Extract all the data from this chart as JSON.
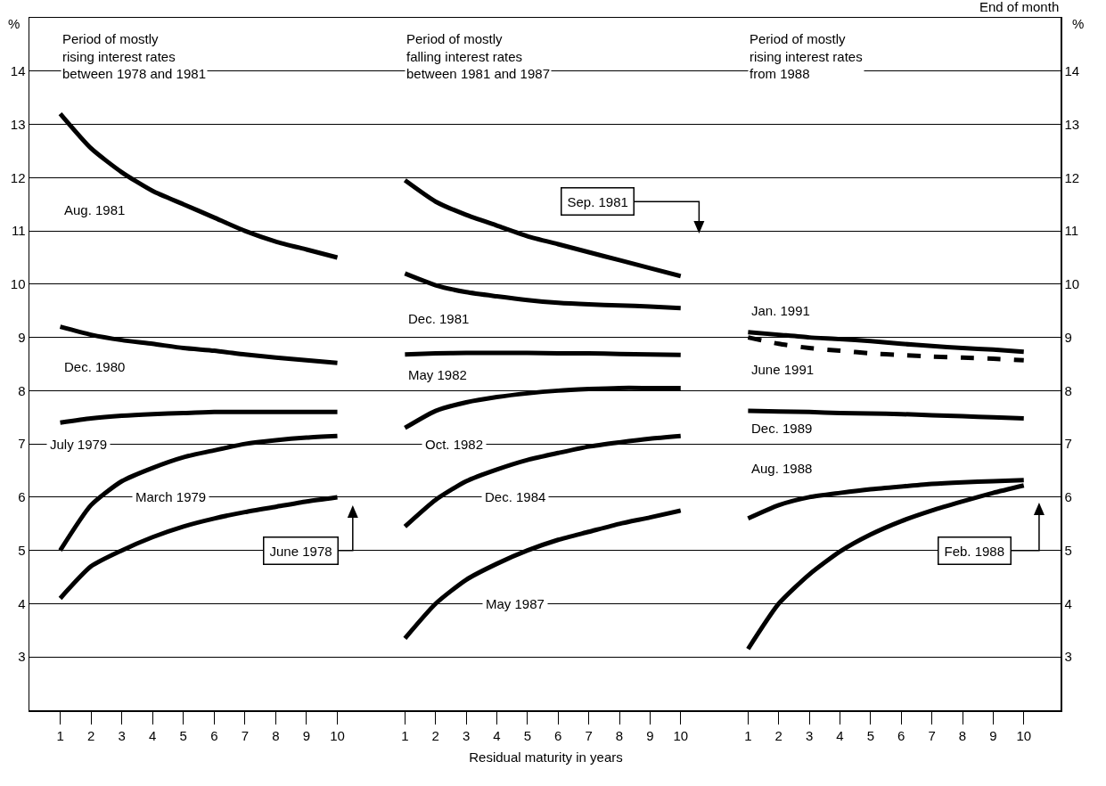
{
  "chart_data": [
    {
      "type": "line",
      "title": "Period of mostly\nrising interest rates\nbetween 1978 and 1981",
      "ylabel": "%",
      "x": [
        1,
        2,
        3,
        4,
        5,
        6,
        7,
        8,
        9,
        10
      ],
      "xlim": [
        0,
        11.2
      ],
      "xticks": [
        1,
        2,
        3,
        4,
        5,
        6,
        7,
        8,
        9,
        10
      ],
      "ylim": [
        2,
        15
      ],
      "yticks": [
        3,
        4,
        5,
        6,
        7,
        8,
        9,
        10,
        11,
        12,
        13,
        14
      ],
      "grid": "y",
      "series": [
        {
          "name": "Aug. 1981",
          "color": "#000000",
          "values": [
            13.2,
            12.55,
            12.1,
            11.75,
            11.5,
            11.25,
            11.0,
            10.8,
            10.65,
            10.5
          ]
        },
        {
          "name": "Dec. 1980",
          "color": "#000000",
          "values": [
            9.2,
            9.05,
            8.95,
            8.88,
            8.8,
            8.75,
            8.68,
            8.62,
            8.57,
            8.52
          ]
        },
        {
          "name": "July 1979",
          "color": "#000000",
          "values": [
            7.4,
            7.48,
            7.53,
            7.56,
            7.58,
            7.6,
            7.6,
            7.6,
            7.6,
            7.6
          ]
        },
        {
          "name": "March 1979",
          "color": "#000000",
          "values": [
            5.0,
            5.85,
            6.3,
            6.55,
            6.75,
            6.88,
            7.0,
            7.07,
            7.12,
            7.15
          ]
        },
        {
          "name": "June 1978",
          "color": "#000000",
          "values": [
            4.1,
            4.7,
            5.0,
            5.25,
            5.45,
            5.6,
            5.72,
            5.82,
            5.92,
            6.0
          ]
        }
      ]
    },
    {
      "type": "line",
      "title": "Period of mostly\nfalling interest rates\nbetween 1981 and 1987",
      "xlabel": "Residual maturity in years",
      "tick_labels": "x",
      "x": [
        1,
        2,
        3,
        4,
        5,
        6,
        7,
        8,
        9,
        10
      ],
      "xlim": [
        0,
        11.2
      ],
      "xticks": [
        1,
        2,
        3,
        4,
        5,
        6,
        7,
        8,
        9,
        10
      ],
      "ylim": [
        2,
        15
      ],
      "yticks": [
        3,
        4,
        5,
        6,
        7,
        8,
        9,
        10,
        11,
        12,
        13,
        14
      ],
      "grid": "y",
      "series": [
        {
          "name": "Sep. 1981",
          "color": "#000000",
          "values": [
            11.95,
            11.55,
            11.3,
            11.1,
            10.9,
            10.75,
            10.6,
            10.45,
            10.3,
            10.15
          ]
        },
        {
          "name": "Dec. 1981",
          "color": "#000000",
          "values": [
            10.2,
            9.98,
            9.85,
            9.77,
            9.7,
            9.65,
            9.62,
            9.6,
            9.58,
            9.55
          ]
        },
        {
          "name": "May 1982",
          "color": "#000000",
          "values": [
            8.68,
            8.7,
            8.71,
            8.71,
            8.71,
            8.7,
            8.7,
            8.69,
            8.68,
            8.67
          ]
        },
        {
          "name": "Oct. 1982",
          "color": "#000000",
          "values": [
            7.3,
            7.62,
            7.78,
            7.88,
            7.95,
            8.0,
            8.03,
            8.05,
            8.05,
            8.05
          ]
        },
        {
          "name": "Dec. 1984",
          "color": "#000000",
          "values": [
            5.45,
            5.95,
            6.3,
            6.52,
            6.7,
            6.83,
            6.95,
            7.03,
            7.1,
            7.15
          ]
        },
        {
          "name": "May 1987",
          "color": "#000000",
          "values": [
            3.35,
            4.0,
            4.45,
            4.75,
            5.0,
            5.2,
            5.35,
            5.5,
            5.62,
            5.75
          ]
        }
      ]
    },
    {
      "type": "line",
      "title": "Period of mostly\nrising interest rates\nfrom 1988",
      "ylabel": "%",
      "annotations": [
        "End of month"
      ],
      "x": [
        1,
        2,
        3,
        4,
        5,
        6,
        7,
        8,
        9,
        10
      ],
      "xlim": [
        0,
        11.2
      ],
      "xticks": [
        1,
        2,
        3,
        4,
        5,
        6,
        7,
        8,
        9,
        10
      ],
      "ylim": [
        2,
        15
      ],
      "yticks": [
        3,
        4,
        5,
        6,
        7,
        8,
        9,
        10,
        11,
        12,
        13,
        14
      ],
      "grid": "y",
      "series": [
        {
          "name": "Jan. 1991",
          "color": "#000000",
          "values": [
            9.1,
            9.05,
            9.0,
            8.97,
            8.93,
            8.88,
            8.84,
            8.8,
            8.77,
            8.73
          ]
        },
        {
          "name": "June 1991",
          "color": "#000000",
          "line_style": "dashed",
          "values": [
            9.0,
            8.88,
            8.8,
            8.75,
            8.7,
            8.67,
            8.64,
            8.62,
            8.6,
            8.57
          ]
        },
        {
          "name": "Dec. 1989",
          "color": "#000000",
          "values": [
            7.62,
            7.61,
            7.6,
            7.58,
            7.57,
            7.56,
            7.54,
            7.52,
            7.5,
            7.48
          ]
        },
        {
          "name": "Aug. 1988",
          "color": "#000000",
          "values": [
            5.6,
            5.85,
            6.0,
            6.08,
            6.15,
            6.2,
            6.25,
            6.28,
            6.3,
            6.32
          ]
        },
        {
          "name": "Feb. 1988",
          "color": "#000000",
          "values": [
            3.15,
            4.0,
            4.55,
            4.98,
            5.3,
            5.55,
            5.75,
            5.92,
            6.08,
            6.22
          ]
        }
      ]
    }
  ]
}
